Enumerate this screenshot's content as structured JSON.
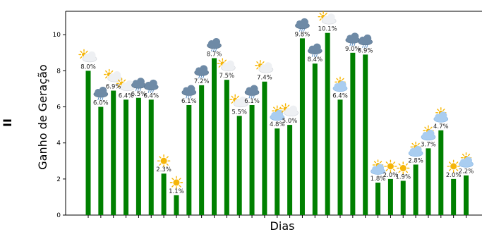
{
  "side_mark": "II",
  "chart_data": {
    "type": "bar",
    "title": "",
    "xlabel": "Dias",
    "ylabel": "Ganho de Geração",
    "ylim": [
      0,
      11.3
    ],
    "yticks": [
      "0",
      "2",
      "4",
      "6",
      "8",
      "10"
    ],
    "grid": false,
    "bar_color": "#008000",
    "values": [
      8.0,
      6.0,
      6.9,
      6.4,
      6.5,
      6.4,
      2.3,
      1.1,
      6.1,
      7.2,
      8.7,
      7.5,
      5.5,
      6.1,
      7.4,
      4.8,
      5.0,
      9.8,
      8.4,
      10.1,
      6.4,
      9.0,
      8.9,
      1.8,
      2.0,
      1.9,
      2.8,
      3.7,
      4.7,
      2.0,
      2.2
    ],
    "labels": [
      "8.0%",
      "6.0%",
      "6.9%",
      "6.4%",
      "6.5%",
      "6.4%",
      "2.3%",
      "1.1%",
      "6.1%",
      "7.2%",
      "8.7%",
      "7.5%",
      "5.5%",
      "6.1%",
      "7.4%",
      "4.8%",
      "5.0%",
      "9.8%",
      "8.4%",
      "10.1%",
      "6.4%",
      "9.0%",
      "8.9%",
      "1.8%",
      "2.0%",
      "1.9%",
      "2.8%",
      "3.7%",
      "4.7%",
      "2.0%",
      "2.2%"
    ],
    "weather_icons": [
      "partly-sunny",
      "rain-cloud",
      "partly-sunny",
      "partly-sunny",
      "rain-cloud",
      "rain-cloud",
      "sun",
      "sun",
      "rain-cloud",
      "rain-cloud",
      "rain-cloud",
      "partly-sunny",
      "partly-sunny",
      "rain-cloud",
      "partly-sunny",
      "cloud-sun",
      "partly-sunny",
      "rain-cloud",
      "rain-cloud",
      "partly-sunny",
      "cloud-sun",
      "rain-cloud",
      "rain-cloud",
      "cloud-sun",
      "sun",
      "sun",
      "cloud-sun",
      "cloud-sun",
      "cloud-sun",
      "sun",
      "cloud-sun"
    ]
  }
}
